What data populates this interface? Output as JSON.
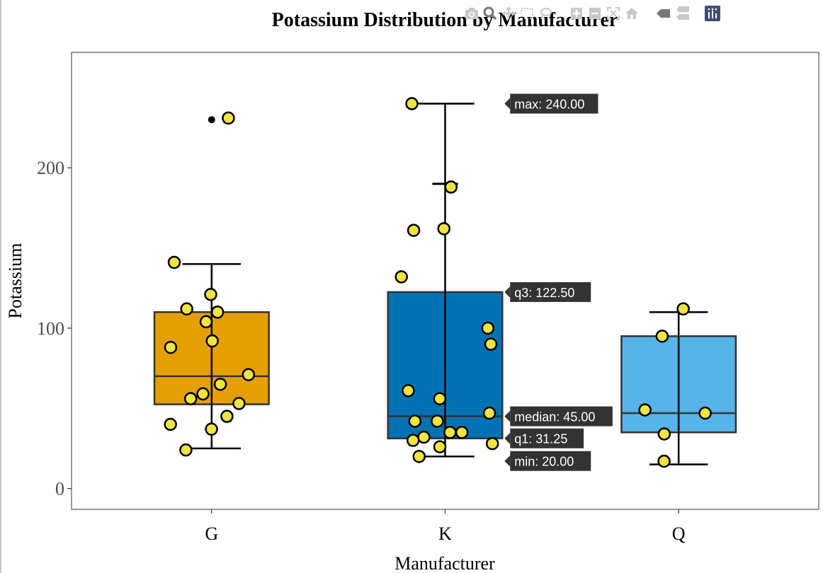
{
  "chart_data": {
    "type": "box",
    "title": "Potassium Distribution by Manufacturer",
    "xlabel": "Manufacturer",
    "ylabel": "Potassium",
    "ylim": [
      -13,
      272
    ],
    "yticks": [
      0,
      100,
      200
    ],
    "categories": [
      "G",
      "K",
      "Q"
    ],
    "grid": false,
    "legend": "none",
    "boxes": [
      {
        "category": "G",
        "color": "#E69F00",
        "min": 25,
        "q1": 52.5,
        "median": 70,
        "q3": 110,
        "max": 140,
        "outliers": [
          230
        ],
        "points": [
          121,
          110,
          141,
          112,
          104,
          92,
          88,
          71,
          65,
          59,
          56,
          53,
          45,
          40,
          37,
          24,
          231
        ]
      },
      {
        "category": "K",
        "color": "#0072B2",
        "min": 20,
        "q1": 31.25,
        "median": 45,
        "q3": 122.5,
        "max": 240,
        "outliers": [],
        "points": [
          240,
          188,
          162,
          161,
          132,
          100,
          90,
          61,
          56,
          47,
          42,
          42,
          35,
          35,
          32,
          30,
          28,
          26,
          20
        ]
      },
      {
        "category": "Q",
        "color": "#56B4E9",
        "min": 15,
        "q1": 35,
        "median": 47,
        "q3": 95,
        "max": 110,
        "outliers": [],
        "points": [
          112,
          95,
          49,
          47,
          34,
          17
        ]
      }
    ],
    "hover": {
      "category": "K",
      "labels": [
        {
          "key": "max",
          "text": "max: 240.00",
          "value": 240
        },
        {
          "key": "q3",
          "text": "q3: 122.50",
          "value": 122.5
        },
        {
          "key": "median",
          "text": "median: 45.00",
          "value": 45
        },
        {
          "key": "q1",
          "text": "q1: 31.25",
          "value": 31.25
        },
        {
          "key": "min",
          "text": "min: 20.00",
          "value": 20
        }
      ]
    },
    "extra_error_bar": {
      "category": "K",
      "value": 190
    },
    "point_style": {
      "fill": "#F0E442",
      "stroke": "#000000"
    }
  },
  "toolbar": {
    "icons": [
      "camera-icon",
      "zoom-icon",
      "pan-icon",
      "box-select-icon",
      "lasso-icon",
      "zoom-in-icon",
      "zoom-out-icon",
      "autoscale-icon",
      "reset-axes-icon",
      "spike-lines-icon",
      "compare-hover-icon",
      "plotly-logo-icon"
    ]
  }
}
